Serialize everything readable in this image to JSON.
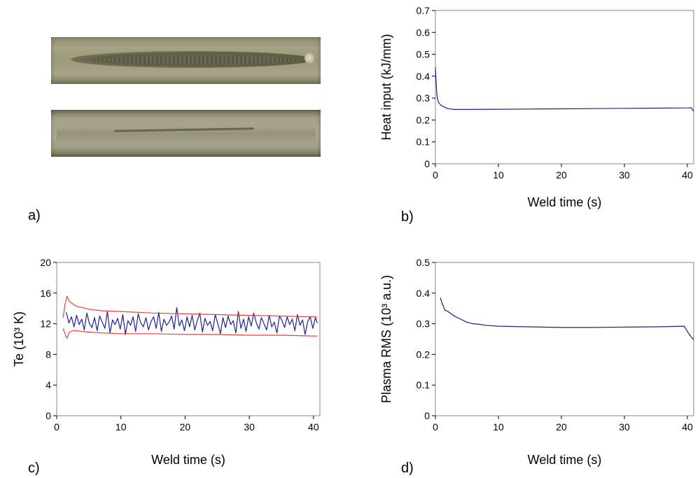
{
  "labels": {
    "a": "a)",
    "b": "b)",
    "c": "c)",
    "d": "d)"
  },
  "photos": {
    "top": "weld-bead-top-photo",
    "bottom": "weld-bead-root-photo"
  },
  "chart_data": [
    {
      "id": "b",
      "type": "line",
      "xlabel": "Weld time (s)",
      "ylabel": "Heat input (kJ/mm)",
      "xlim": [
        0,
        41
      ],
      "ylim": [
        0,
        0.7
      ],
      "xticks": [
        0,
        10,
        20,
        30,
        40
      ],
      "yticks": [
        0,
        0.1,
        0.2,
        0.3,
        0.4,
        0.5,
        0.6,
        0.7
      ],
      "ytick_labels": [
        "0",
        "0.1",
        "0.2",
        "0.3",
        "0.4",
        "0.5",
        "0.6",
        "0.7"
      ],
      "grid": false,
      "series": [
        {
          "color": "#1f1f8f",
          "x": [
            0,
            0.1,
            0.2,
            0.3,
            0.5,
            0.8,
            1,
            1.5,
            2,
            2.5,
            3,
            5,
            10,
            15,
            20,
            25,
            30,
            35,
            40,
            40.6,
            41
          ],
          "y": [
            0.44,
            0.38,
            0.33,
            0.3,
            0.28,
            0.27,
            0.265,
            0.258,
            0.252,
            0.25,
            0.248,
            0.248,
            0.249,
            0.25,
            0.251,
            0.252,
            0.253,
            0.254,
            0.255,
            0.256,
            0.24
          ]
        }
      ]
    },
    {
      "id": "c",
      "type": "line",
      "xlabel": "Weld time (s)",
      "ylabel": "Te (10³ K)",
      "xlim": [
        0,
        41
      ],
      "ylim": [
        0,
        20
      ],
      "xticks": [
        0,
        10,
        20,
        30,
        40
      ],
      "yticks": [
        0,
        4,
        8,
        12,
        16,
        20
      ],
      "grid": false,
      "series": [
        {
          "color": "#1f1f8f",
          "x": [
            1.5,
            1.9,
            2.3,
            2.7,
            3.1,
            3.5,
            3.9,
            4.3,
            4.7,
            5.1,
            5.5,
            5.9,
            6.3,
            6.7,
            7.1,
            7.5,
            7.9,
            8.3,
            8.7,
            9.1,
            9.5,
            9.9,
            10.3,
            10.7,
            11.1,
            11.5,
            11.9,
            12.3,
            12.7,
            13.1,
            13.5,
            13.9,
            14.3,
            14.7,
            15.1,
            15.5,
            15.9,
            16.3,
            16.7,
            17.1,
            17.5,
            17.9,
            18.3,
            18.7,
            19.1,
            19.5,
            19.9,
            20.3,
            20.7,
            21.1,
            21.5,
            21.9,
            22.3,
            22.7,
            23.1,
            23.5,
            23.9,
            24.3,
            24.7,
            25.1,
            25.5,
            25.9,
            26.3,
            26.7,
            27.1,
            27.5,
            27.9,
            28.3,
            28.7,
            29.1,
            29.5,
            29.9,
            30.3,
            30.7,
            31.1,
            31.5,
            31.9,
            32.3,
            32.7,
            33.1,
            33.5,
            33.9,
            34.3,
            34.7,
            35.1,
            35.5,
            35.9,
            36.3,
            36.7,
            37.1,
            37.5,
            37.9,
            38.3,
            38.7,
            39.1,
            39.5,
            39.9,
            40.3,
            40.6
          ],
          "y": [
            13.5,
            12.1,
            12.9,
            11.6,
            13.1,
            11.9,
            12.6,
            11.2,
            13.4,
            12.0,
            11.5,
            12.8,
            11.1,
            13.0,
            12.2,
            11.4,
            13.6,
            10.8,
            12.5,
            11.9,
            12.7,
            11.3,
            13.2,
            10.6,
            12.4,
            11.8,
            12.9,
            11.0,
            13.3,
            12.1,
            11.6,
            12.8,
            11.2,
            12.3,
            12.9,
            11.4,
            13.5,
            11.0,
            12.6,
            11.8,
            12.2,
            13.0,
            11.3,
            14.1,
            11.7,
            12.5,
            11.1,
            12.9,
            11.6,
            13.1,
            11.2,
            12.4,
            13.4,
            10.9,
            12.7,
            11.8,
            12.3,
            11.1,
            13.2,
            12.0,
            10.7,
            12.8,
            11.5,
            13.0,
            11.9,
            12.4,
            10.8,
            13.6,
            11.4,
            12.6,
            11.0,
            12.9,
            11.7,
            13.4,
            12.1,
            11.3,
            12.8,
            12.0,
            11.2,
            13.1,
            11.6,
            12.2,
            10.8,
            13.0,
            12.4,
            11.5,
            12.9,
            11.9,
            12.6,
            11.1,
            13.2,
            11.8,
            12.5,
            10.6,
            12.3,
            12.9,
            11.4,
            12.8,
            12.1
          ]
        },
        {
          "color": "#e8403a",
          "x": [
            1,
            1.3,
            1.6,
            2,
            2.5,
            3,
            4,
            5,
            7,
            10,
            15,
            20,
            25,
            30,
            35,
            40,
            40.6
          ],
          "y": [
            12.8,
            14.5,
            15.6,
            14.9,
            14.6,
            14.3,
            14.1,
            13.9,
            13.7,
            13.6,
            13.4,
            13.3,
            13.2,
            13.1,
            13.0,
            12.9,
            12.9
          ]
        },
        {
          "color": "#e8403a",
          "x": [
            1,
            1.3,
            1.6,
            2,
            2.5,
            3,
            4,
            5,
            7,
            10,
            15,
            20,
            25,
            30,
            35,
            40,
            40.6
          ],
          "y": [
            11.4,
            10.7,
            10.1,
            10.9,
            11.1,
            11.1,
            11.0,
            10.9,
            10.8,
            10.7,
            10.7,
            10.6,
            10.6,
            10.5,
            10.5,
            10.4,
            10.4
          ]
        }
      ]
    },
    {
      "id": "d",
      "type": "line",
      "xlabel": "Weld time (s)",
      "ylabel": "Plasma RMS (10³ a.u.)",
      "xlim": [
        0,
        41
      ],
      "ylim": [
        0,
        0.5
      ],
      "xticks": [
        0,
        10,
        20,
        30,
        40
      ],
      "yticks": [
        0,
        0.1,
        0.2,
        0.3,
        0.4,
        0.5
      ],
      "ytick_labels": [
        "0",
        "0.1",
        "0.2",
        "0.3",
        "0.4",
        "0.5"
      ],
      "grid": false,
      "series": [
        {
          "color": "#1f1f8f",
          "x": [
            0.8,
            1,
            1.5,
            2,
            3,
            4,
            5,
            6,
            7,
            8,
            10,
            15,
            20,
            25,
            30,
            35,
            39.5,
            40,
            40.5,
            41
          ],
          "y": [
            0.385,
            0.37,
            0.345,
            0.34,
            0.325,
            0.315,
            0.305,
            0.3,
            0.298,
            0.295,
            0.292,
            0.29,
            0.288,
            0.288,
            0.289,
            0.29,
            0.292,
            0.275,
            0.26,
            0.248
          ]
        }
      ]
    }
  ]
}
